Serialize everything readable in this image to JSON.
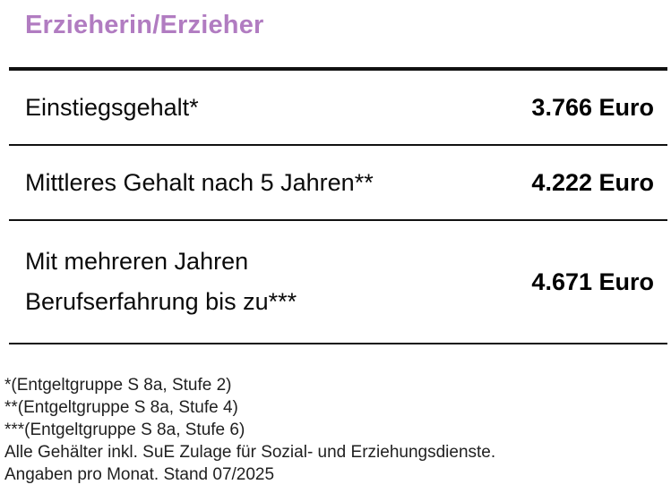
{
  "title": "Erzieherin/Erzieher",
  "colors": {
    "title": "#b17cc1",
    "text": "#0a0a0a",
    "rule": "#111111"
  },
  "table": {
    "rows": [
      {
        "label": "Einstiegsgehalt*",
        "value": "3.766 Euro"
      },
      {
        "label": "Mittleres Gehalt nach 5 Jahren**",
        "value": "4.222 Euro"
      },
      {
        "label": "Mit mehreren Jahren Berufserfahrung bis zu***",
        "value": "4.671 Euro"
      }
    ]
  },
  "footnotes": [
    "*(Entgeltgruppe S 8a, Stufe 2)",
    "**(Entgeltgruppe S 8a, Stufe 4)",
    "***(Entgeltgruppe S 8a, Stufe 6)",
    "Alle Gehälter inkl. SuE Zulage für Sozial- und Erziehungsdienste.",
    "Angaben pro Monat. Stand 07/2025"
  ],
  "chart_data": {
    "type": "table",
    "title": "Erzieherin/Erzieher",
    "categories": [
      "Einstiegsgehalt*",
      "Mittleres Gehalt nach 5 Jahren**",
      "Mit mehreren Jahren Berufserfahrung bis zu***"
    ],
    "values": [
      3766,
      4222,
      4671
    ],
    "value_labels": [
      "3.766 Euro",
      "4.222 Euro",
      "4.671 Euro"
    ],
    "unit": "Euro",
    "notes": [
      "*(Entgeltgruppe S 8a, Stufe 2)",
      "**(Entgeltgruppe S 8a, Stufe 4)",
      "***(Entgeltgruppe S 8a, Stufe 6)",
      "Alle Gehälter inkl. SuE Zulage für Sozial- und Erziehungsdienste.",
      "Angaben pro Monat. Stand 07/2025"
    ]
  }
}
